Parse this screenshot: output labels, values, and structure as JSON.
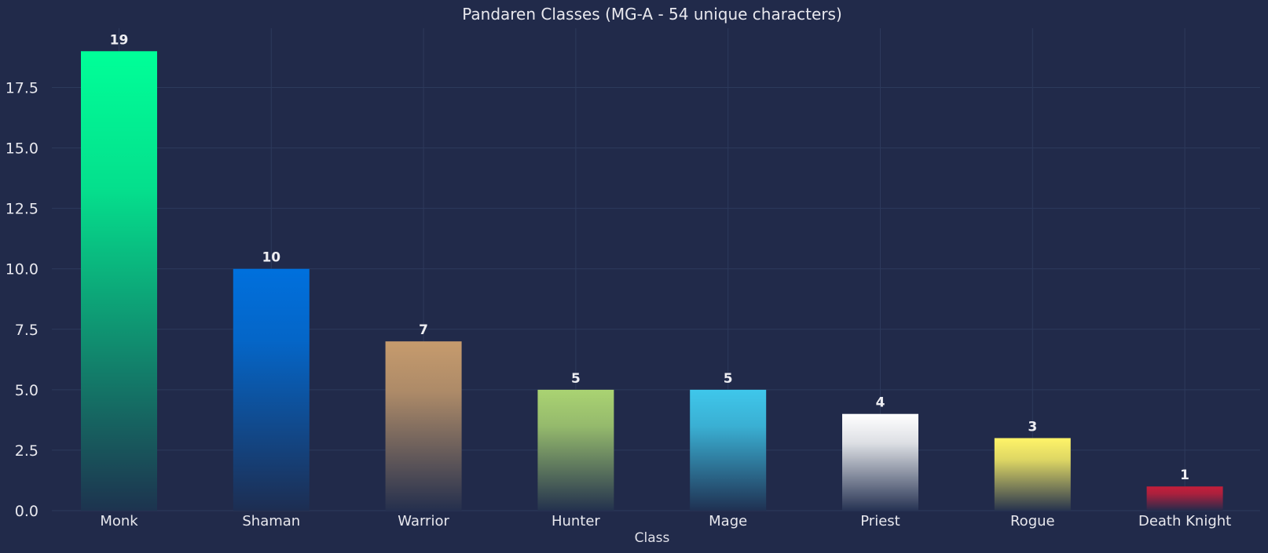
{
  "chart_data": {
    "type": "bar",
    "title": "Pandaren Classes (MG-A - 54 unique characters)",
    "xlabel": "Class",
    "ylabel": "",
    "ylim": [
      0,
      19.95
    ],
    "yticks": [
      "0.0",
      "2.5",
      "5.0",
      "7.5",
      "10.0",
      "12.5",
      "15.0",
      "17.5"
    ],
    "ytick_values": [
      0,
      2.5,
      5,
      7.5,
      10,
      12.5,
      15,
      17.5
    ],
    "grid": true,
    "categories": [
      "Monk",
      "Shaman",
      "Warrior",
      "Hunter",
      "Mage",
      "Priest",
      "Rogue",
      "Death Knight"
    ],
    "values": [
      19,
      10,
      7,
      5,
      5,
      4,
      3,
      1
    ],
    "colors": [
      "#00ff98",
      "#0070dd",
      "#c69b6d",
      "#aad372",
      "#3fc7eb",
      "#ffffff",
      "#fff468",
      "#c41e3a"
    ]
  }
}
